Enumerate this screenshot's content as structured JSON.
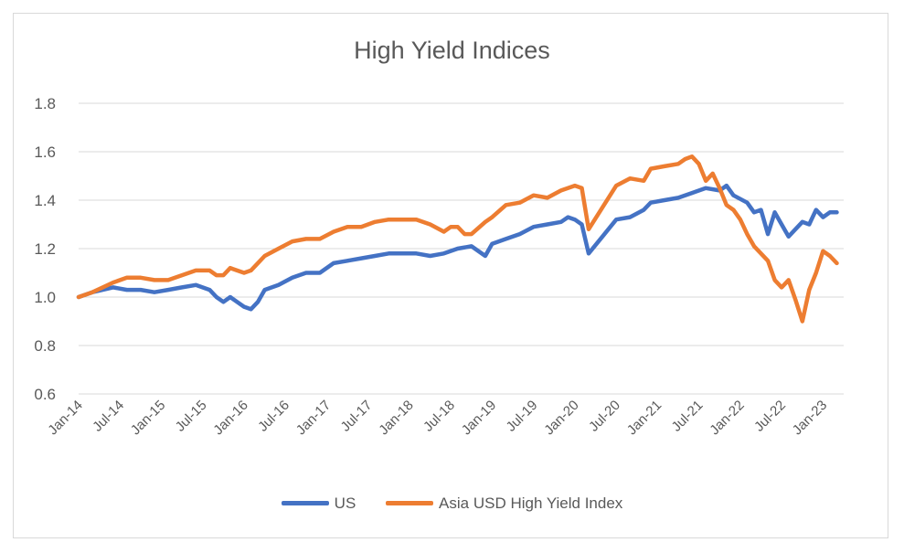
{
  "chart_data": {
    "type": "line",
    "title": "High Yield Indices",
    "ylim": [
      0.6,
      1.8
    ],
    "yticks": [
      "0.6",
      "0.8",
      "1.0",
      "1.2",
      "1.4",
      "1.6",
      "1.8"
    ],
    "x_ticks": [
      "Jan-14",
      "Jul-14",
      "Jan-15",
      "Jul-15",
      "Jan-16",
      "Jul-16",
      "Jan-17",
      "Jul-17",
      "Jan-18",
      "Jul-18",
      "Jan-19",
      "Jul-19",
      "Jan-20",
      "Jul-20",
      "Jan-21",
      "Jul-21",
      "Jan-22",
      "Jul-22",
      "Jan-23"
    ],
    "x_start": "Jan-14",
    "x_end": "Apr-23",
    "grid": true,
    "legend_position": "bottom",
    "series": [
      {
        "name": "US",
        "color": "#4472C4",
        "points": [
          [
            "Jan-14",
            1.0
          ],
          [
            "Mar-14",
            1.02
          ],
          [
            "Jun-14",
            1.04
          ],
          [
            "Aug-14",
            1.03
          ],
          [
            "Oct-14",
            1.03
          ],
          [
            "Dec-14",
            1.02
          ],
          [
            "Feb-15",
            1.03
          ],
          [
            "Apr-15",
            1.04
          ],
          [
            "Jun-15",
            1.05
          ],
          [
            "Aug-15",
            1.03
          ],
          [
            "Sep-15",
            1.0
          ],
          [
            "Oct-15",
            0.98
          ],
          [
            "Nov-15",
            1.0
          ],
          [
            "Dec-15",
            0.98
          ],
          [
            "Jan-16",
            0.96
          ],
          [
            "Feb-16",
            0.95
          ],
          [
            "Mar-16",
            0.98
          ],
          [
            "Apr-16",
            1.03
          ],
          [
            "Jun-16",
            1.05
          ],
          [
            "Aug-16",
            1.08
          ],
          [
            "Oct-16",
            1.1
          ],
          [
            "Dec-16",
            1.1
          ],
          [
            "Feb-17",
            1.14
          ],
          [
            "Apr-17",
            1.15
          ],
          [
            "Jun-17",
            1.16
          ],
          [
            "Aug-17",
            1.17
          ],
          [
            "Oct-17",
            1.18
          ],
          [
            "Dec-17",
            1.18
          ],
          [
            "Feb-18",
            1.18
          ],
          [
            "Apr-18",
            1.17
          ],
          [
            "Jun-18",
            1.18
          ],
          [
            "Aug-18",
            1.2
          ],
          [
            "Oct-18",
            1.21
          ],
          [
            "Dec-18",
            1.17
          ],
          [
            "Jan-19",
            1.22
          ],
          [
            "Mar-19",
            1.24
          ],
          [
            "May-19",
            1.26
          ],
          [
            "Jul-19",
            1.29
          ],
          [
            "Sep-19",
            1.3
          ],
          [
            "Nov-19",
            1.31
          ],
          [
            "Dec-19",
            1.33
          ],
          [
            "Jan-20",
            1.32
          ],
          [
            "Feb-20",
            1.3
          ],
          [
            "Mar-20",
            1.18
          ],
          [
            "May-20",
            1.25
          ],
          [
            "Jul-20",
            1.32
          ],
          [
            "Sep-20",
            1.33
          ],
          [
            "Nov-20",
            1.36
          ],
          [
            "Dec-20",
            1.39
          ],
          [
            "Feb-21",
            1.4
          ],
          [
            "Apr-21",
            1.41
          ],
          [
            "Jun-21",
            1.43
          ],
          [
            "Aug-21",
            1.45
          ],
          [
            "Oct-21",
            1.44
          ],
          [
            "Nov-21",
            1.46
          ],
          [
            "Dec-21",
            1.42
          ],
          [
            "Feb-22",
            1.39
          ],
          [
            "Mar-22",
            1.35
          ],
          [
            "Apr-22",
            1.36
          ],
          [
            "May-22",
            1.26
          ],
          [
            "Jun-22",
            1.35
          ],
          [
            "Jul-22",
            1.3
          ],
          [
            "Aug-22",
            1.25
          ],
          [
            "Oct-22",
            1.31
          ],
          [
            "Nov-22",
            1.3
          ],
          [
            "Dec-22",
            1.36
          ],
          [
            "Jan-23",
            1.33
          ],
          [
            "Feb-23",
            1.35
          ],
          [
            "Mar-23",
            1.35
          ]
        ]
      },
      {
        "name": "Asia USD High Yield Index",
        "color": "#ED7D31",
        "points": [
          [
            "Jan-14",
            1.0
          ],
          [
            "Mar-14",
            1.02
          ],
          [
            "Jun-14",
            1.06
          ],
          [
            "Aug-14",
            1.08
          ],
          [
            "Oct-14",
            1.08
          ],
          [
            "Dec-14",
            1.07
          ],
          [
            "Feb-15",
            1.07
          ],
          [
            "Apr-15",
            1.09
          ],
          [
            "Jun-15",
            1.11
          ],
          [
            "Aug-15",
            1.11
          ],
          [
            "Sep-15",
            1.09
          ],
          [
            "Oct-15",
            1.09
          ],
          [
            "Nov-15",
            1.12
          ],
          [
            "Dec-15",
            1.11
          ],
          [
            "Jan-16",
            1.1
          ],
          [
            "Feb-16",
            1.11
          ],
          [
            "Mar-16",
            1.14
          ],
          [
            "Apr-16",
            1.17
          ],
          [
            "Jun-16",
            1.2
          ],
          [
            "Aug-16",
            1.23
          ],
          [
            "Oct-16",
            1.24
          ],
          [
            "Dec-16",
            1.24
          ],
          [
            "Feb-17",
            1.27
          ],
          [
            "Apr-17",
            1.29
          ],
          [
            "Jun-17",
            1.29
          ],
          [
            "Aug-17",
            1.31
          ],
          [
            "Oct-17",
            1.32
          ],
          [
            "Dec-17",
            1.32
          ],
          [
            "Feb-18",
            1.32
          ],
          [
            "Apr-18",
            1.3
          ],
          [
            "Jun-18",
            1.27
          ],
          [
            "Jul-18",
            1.29
          ],
          [
            "Aug-18",
            1.29
          ],
          [
            "Sep-18",
            1.26
          ],
          [
            "Oct-18",
            1.26
          ],
          [
            "Dec-18",
            1.31
          ],
          [
            "Jan-19",
            1.33
          ],
          [
            "Mar-19",
            1.38
          ],
          [
            "May-19",
            1.39
          ],
          [
            "Jul-19",
            1.42
          ],
          [
            "Sep-19",
            1.41
          ],
          [
            "Nov-19",
            1.44
          ],
          [
            "Dec-19",
            1.45
          ],
          [
            "Jan-20",
            1.46
          ],
          [
            "Feb-20",
            1.45
          ],
          [
            "Mar-20",
            1.28
          ],
          [
            "May-20",
            1.37
          ],
          [
            "Jul-20",
            1.46
          ],
          [
            "Sep-20",
            1.49
          ],
          [
            "Nov-20",
            1.48
          ],
          [
            "Dec-20",
            1.53
          ],
          [
            "Feb-21",
            1.54
          ],
          [
            "Apr-21",
            1.55
          ],
          [
            "May-21",
            1.57
          ],
          [
            "Jun-21",
            1.58
          ],
          [
            "Jul-21",
            1.55
          ],
          [
            "Aug-21",
            1.48
          ],
          [
            "Sep-21",
            1.51
          ],
          [
            "Oct-21",
            1.45
          ],
          [
            "Nov-21",
            1.38
          ],
          [
            "Dec-21",
            1.36
          ],
          [
            "Jan-22",
            1.32
          ],
          [
            "Feb-22",
            1.26
          ],
          [
            "Mar-22",
            1.21
          ],
          [
            "Apr-22",
            1.18
          ],
          [
            "May-22",
            1.15
          ],
          [
            "Jun-22",
            1.07
          ],
          [
            "Jul-22",
            1.04
          ],
          [
            "Aug-22",
            1.07
          ],
          [
            "Sep-22",
            0.99
          ],
          [
            "Oct-22",
            0.9
          ],
          [
            "Nov-22",
            1.03
          ],
          [
            "Dec-22",
            1.1
          ],
          [
            "Jan-23",
            1.19
          ],
          [
            "Feb-23",
            1.17
          ],
          [
            "Mar-23",
            1.14
          ]
        ]
      }
    ]
  }
}
